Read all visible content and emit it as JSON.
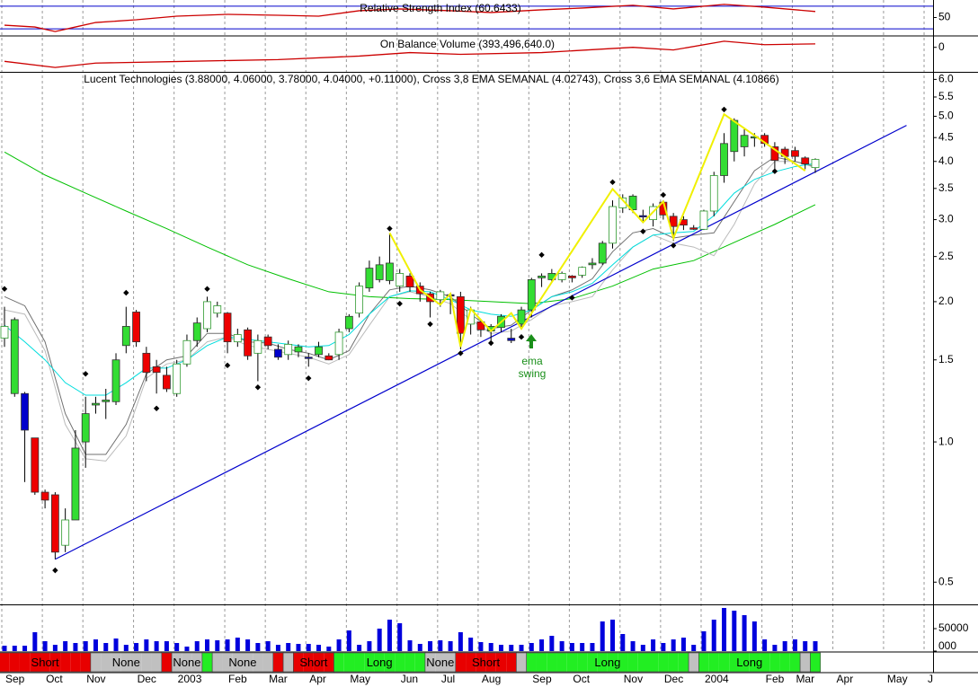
{
  "chart_data": [
    {
      "type": "line",
      "title": "Relative Strength Index (60.6433)",
      "color": "#cc0000",
      "level_color": "#0000cc",
      "ylim": [
        19,
        81
      ],
      "yticks": [
        50
      ],
      "levels": [
        30,
        70
      ],
      "x": [
        0,
        3,
        5,
        7,
        9,
        13,
        17,
        22,
        27,
        31,
        35,
        39,
        44,
        48,
        53,
        57,
        62,
        66,
        71,
        75,
        80
      ],
      "values": [
        36.4,
        33.2,
        25.2,
        33.2,
        41.2,
        46,
        52.4,
        55.6,
        54,
        52.4,
        62,
        65.2,
        62,
        58.8,
        63.6,
        66.8,
        71.6,
        65.2,
        73.2,
        68.4,
        60.6433
      ]
    },
    {
      "type": "line",
      "title": "On Balance Volume (393,496,640.0)",
      "color": "#cc0000",
      "ylim": [
        -2800000000,
        1200000000
      ],
      "yticks": [
        0
      ],
      "x": [
        0,
        5,
        9,
        18,
        27,
        35,
        40,
        45,
        53,
        62,
        66,
        71,
        75,
        80
      ],
      "values": [
        -1600000000,
        -2300000000,
        -1800000000,
        -1600000000,
        -1400000000,
        -1000000000,
        -600000000,
        -800000000,
        -600000000,
        0,
        -300000000,
        700000000,
        300000000,
        393496640
      ]
    },
    {
      "type": "candlestick",
      "title": "Lucent Technologies (3.88000, 4.06000, 3.78000, 4.04000, +0.11000), Cross 3,8 EMA SEMANAL (4.02743), Cross 3,6 EMA SEMANAL (4.10866)",
      "log_scale": true,
      "ylim": [
        0.45,
        6.2
      ],
      "yticks": [
        {
          "value": 6,
          "label": "6.0"
        },
        5.5,
        {
          "value": 5,
          "label": "5.0"
        },
        4.5,
        {
          "value": 4,
          "label": "4.0"
        },
        3.5,
        {
          "value": 3,
          "label": "3.0"
        },
        2.5,
        {
          "value": 2,
          "label": "2.0"
        },
        1.5,
        {
          "value": 1,
          "label": "1.0"
        },
        0.5
      ],
      "hollow_outline": "#2f9a2f",
      "open": [
        1.67,
        1.83,
        1.27,
        1.02,
        0.78,
        0.77,
        0.6,
        0.68,
        1.0,
        1.2,
        1.22,
        1.22,
        1.61,
        1.9,
        1.55,
        1.45,
        1.39,
        1.27,
        1.47,
        1.65,
        1.75,
        1.89,
        1.89,
        1.64,
        1.74,
        1.55,
        1.68,
        1.58,
        1.54,
        1.56,
        1.52,
        1.54,
        1.53,
        1.54,
        1.75,
        1.89,
        2.14,
        2.23,
        2.22,
        2.16,
        2.27,
        2.16,
        2.08,
        2.02,
        2.06,
        2.05,
        1.79,
        1.81,
        1.73,
        1.76,
        1.65,
        1.79,
        1.92,
        2.25,
        2.23,
        2.23,
        2.27,
        2.28,
        2.4,
        2.42,
        2.67,
        3.18,
        3.15,
        3.06,
        3.0,
        3.27,
        3.05,
        3.0,
        2.88,
        2.86,
        3.13,
        3.73,
        4.2,
        4.3,
        4.5,
        4.55,
        4.3,
        4.25,
        4.22,
        4.07,
        3.88
      ],
      "high": [
        1.95,
        1.85,
        1.28,
        1.02,
        0.79,
        0.78,
        0.72,
        1.06,
        1.25,
        1.25,
        1.3,
        1.55,
        1.95,
        1.92,
        1.6,
        1.5,
        1.45,
        1.5,
        1.7,
        1.85,
        2.05,
        2.0,
        1.9,
        1.75,
        1.76,
        1.7,
        1.7,
        1.62,
        1.65,
        1.62,
        1.55,
        1.64,
        1.55,
        1.75,
        1.88,
        2.2,
        2.45,
        2.5,
        2.8,
        2.35,
        2.3,
        2.2,
        2.1,
        2.12,
        2.08,
        2.1,
        1.95,
        1.83,
        1.79,
        1.88,
        1.75,
        1.95,
        2.25,
        2.3,
        2.35,
        2.32,
        2.28,
        2.38,
        2.48,
        2.7,
        3.3,
        3.4,
        3.4,
        3.15,
        3.25,
        3.3,
        3.1,
        3.05,
        2.92,
        3.15,
        3.8,
        4.6,
        4.95,
        4.7,
        4.6,
        4.6,
        4.4,
        4.3,
        4.3,
        4.1,
        4.06
      ],
      "low": [
        1.6,
        1.25,
        0.82,
        0.77,
        0.72,
        0.56,
        0.58,
        0.68,
        0.88,
        1.15,
        1.12,
        1.2,
        1.55,
        1.6,
        1.35,
        1.27,
        1.28,
        1.25,
        1.45,
        1.6,
        1.72,
        1.85,
        1.55,
        1.6,
        1.5,
        1.35,
        1.58,
        1.5,
        1.5,
        1.52,
        1.45,
        1.52,
        1.5,
        1.5,
        1.72,
        1.85,
        2.1,
        2.2,
        2.18,
        2.1,
        2.1,
        2.0,
        1.85,
        1.95,
        1.88,
        1.58,
        1.7,
        1.68,
        1.65,
        1.72,
        1.63,
        1.75,
        1.85,
        2.15,
        2.2,
        2.2,
        2.2,
        2.25,
        2.35,
        2.4,
        2.6,
        3.1,
        3.1,
        2.95,
        2.9,
        3.0,
        2.7,
        2.85,
        2.85,
        2.85,
        3.05,
        3.6,
        4.0,
        4.1,
        4.3,
        4.3,
        3.85,
        3.95,
        4.0,
        3.85,
        3.78
      ],
      "close": [
        1.77,
        1.27,
        1.06,
        0.78,
        0.75,
        0.58,
        0.68,
        0.97,
        1.15,
        1.21,
        1.23,
        1.5,
        1.77,
        1.64,
        1.41,
        1.41,
        1.3,
        1.47,
        1.65,
        1.8,
        2.0,
        1.96,
        1.64,
        1.7,
        1.53,
        1.65,
        1.61,
        1.52,
        1.62,
        1.6,
        1.52,
        1.6,
        1.5,
        1.72,
        1.86,
        2.16,
        2.36,
        2.4,
        2.42,
        2.3,
        2.15,
        2.08,
        2.0,
        2.1,
        2.07,
        1.71,
        1.92,
        1.74,
        1.77,
        1.86,
        1.67,
        1.92,
        2.23,
        2.27,
        2.3,
        2.3,
        2.25,
        2.37,
        2.42,
        2.67,
        3.2,
        3.34,
        3.37,
        3.04,
        3.2,
        3.07,
        2.9,
        2.92,
        2.86,
        3.13,
        3.73,
        4.37,
        4.9,
        4.55,
        4.52,
        4.37,
        4.02,
        4.1,
        4.1,
        3.95,
        4.04
      ],
      "fills": [
        "#ffffff",
        "#33dd33",
        "#0000cc",
        "#ee0000",
        "#ee0000",
        "#ee0000",
        "#ffffff",
        "#33dd33",
        "#33dd33",
        "#33dd33",
        "#33dd33",
        "#33dd33",
        "#33dd33",
        "#ee0000",
        "#ee0000",
        "#ee0000",
        "#ee0000",
        "#ffffff",
        "#ffffff",
        "#33dd33",
        "#ffffff",
        "#ffffff",
        "#ee0000",
        "#ffffff",
        "#ee0000",
        "#ffffff",
        "#ee0000",
        "#0000cc",
        "#ffffff",
        "#33dd33",
        "#0000cc",
        "#33dd33",
        "#ee0000",
        "#ffffff",
        "#33dd33",
        "#ffffff",
        "#33dd33",
        "#33dd33",
        "#33dd33",
        "#ffffff",
        "#ee0000",
        "#ee0000",
        "#ee0000",
        "#ffffff",
        "#0000cc",
        "#ee0000",
        "#ffffff",
        "#ee0000",
        "#33dd33",
        "#33dd33",
        "#0000cc",
        "#33dd33",
        "#33dd33",
        "#33dd33",
        "#33dd33",
        "#ffffff",
        "#ee0000",
        "#ffffff",
        "#33dd33",
        "#33dd33",
        "#ffffff",
        "#ffffff",
        "#33dd33",
        "#0000cc",
        "#ffffff",
        "#ee0000",
        "#ee0000",
        "#ee0000",
        "#ee0000",
        "#ffffff",
        "#ffffff",
        "#33dd33",
        "#33dd33",
        "#33dd33",
        "#33dd33",
        "#ee0000",
        "#ee0000",
        "#ee0000",
        "#ee0000",
        "#ee0000",
        "#ffffff"
      ],
      "lines": [
        {
          "color": "#00c000",
          "x": [
            0,
            4,
            8,
            12,
            16,
            20,
            24,
            28,
            32,
            36,
            40,
            44,
            48,
            52,
            56,
            60,
            64,
            68,
            72,
            76,
            80
          ],
          "values": [
            4.19,
            3.74,
            3.42,
            3.13,
            2.87,
            2.62,
            2.4,
            2.24,
            2.1,
            2.05,
            2.03,
            2.02,
            2.0,
            1.98,
            2.03,
            2.16,
            2.35,
            2.45,
            2.68,
            2.93,
            3.23
          ]
        },
        {
          "color": "#bbbbbb",
          "x": [
            0,
            2,
            4,
            6,
            8,
            10,
            12,
            14,
            16,
            18,
            20,
            22,
            24,
            26,
            28,
            30,
            32,
            34,
            36,
            38,
            40,
            42,
            44,
            46,
            48,
            50,
            52,
            54,
            56,
            58,
            60,
            62,
            64,
            66,
            68,
            70,
            72,
            74,
            76,
            78,
            80
          ],
          "values": [
            1.92,
            1.88,
            1.57,
            1.09,
            0.92,
            0.91,
            1.03,
            1.37,
            1.47,
            1.5,
            1.64,
            1.68,
            1.61,
            1.58,
            1.55,
            1.52,
            1.47,
            1.54,
            1.78,
            2.05,
            2.1,
            2.05,
            1.98,
            1.83,
            1.71,
            1.73,
            1.83,
            1.96,
            2.0,
            2.05,
            2.34,
            2.62,
            2.78,
            2.67,
            2.62,
            2.51,
            2.93,
            3.58,
            4.0,
            4.0,
            3.88
          ]
        },
        {
          "color": "#707070",
          "x": [
            0,
            2,
            4,
            6,
            8,
            10,
            12,
            14,
            16,
            18,
            20,
            22,
            24,
            26,
            28,
            30,
            32,
            34,
            36,
            38,
            40,
            42,
            44,
            46,
            48,
            50,
            52,
            54,
            56,
            58,
            60,
            62,
            64,
            66,
            68,
            70,
            72,
            74,
            76,
            78,
            80
          ],
          "values": [
            2.05,
            1.96,
            1.64,
            1.15,
            0.94,
            0.94,
            1.09,
            1.4,
            1.5,
            1.53,
            1.71,
            1.71,
            1.64,
            1.63,
            1.58,
            1.55,
            1.5,
            1.57,
            1.88,
            2.12,
            2.16,
            2.12,
            2.05,
            1.88,
            1.75,
            1.78,
            1.92,
            2.05,
            2.12,
            2.24,
            2.56,
            2.81,
            2.87,
            2.74,
            2.78,
            2.81,
            3.28,
            3.82,
            4.09,
            4.0,
            3.9
          ]
        },
        {
          "color": "#00dddd",
          "x": [
            0,
            2,
            4,
            6,
            8,
            10,
            12,
            14,
            16,
            18,
            20,
            22,
            24,
            26,
            28,
            30,
            32,
            34,
            36,
            38,
            40,
            42,
            44,
            46,
            48,
            50,
            52,
            54,
            56,
            58,
            60,
            62,
            64,
            66,
            68,
            70,
            72,
            74,
            76,
            78,
            80
          ],
          "values": [
            1.78,
            1.64,
            1.5,
            1.34,
            1.26,
            1.26,
            1.34,
            1.44,
            1.44,
            1.5,
            1.61,
            1.68,
            1.66,
            1.64,
            1.62,
            1.6,
            1.61,
            1.7,
            1.88,
            2.05,
            2.11,
            2.1,
            2.02,
            1.92,
            1.88,
            1.86,
            1.92,
            2.05,
            2.1,
            2.19,
            2.4,
            2.62,
            2.78,
            2.81,
            2.83,
            3.06,
            3.42,
            3.66,
            3.8,
            3.9,
            3.96
          ]
        }
      ],
      "trendline": {
        "color": "#0000cc",
        "x": [
          5,
          89
        ],
        "values": [
          0.56,
          4.78
        ]
      },
      "zigzag": {
        "color": "#f0f000",
        "x": [
          38,
          41,
          43,
          44,
          45,
          46,
          48,
          50,
          51,
          60,
          63,
          65,
          66,
          71,
          79
        ],
        "values": [
          2.81,
          2.12,
          1.97,
          2.08,
          1.6,
          1.93,
          1.73,
          1.89,
          1.75,
          3.49,
          2.96,
          3.28,
          2.74,
          5.05,
          3.82
        ]
      },
      "pivots": {
        "x": [
          0,
          5,
          8,
          12,
          15,
          20,
          22,
          25,
          30,
          38,
          39,
          42,
          45,
          48,
          51,
          53,
          56,
          60,
          63,
          65,
          66,
          71,
          76
        ],
        "values": [
          2.13,
          0.53,
          1.4,
          2.09,
          1.18,
          2.13,
          1.46,
          1.31,
          1.37,
          2.87,
          1.98,
          1.79,
          1.55,
          1.63,
          1.68,
          2.52,
          2.04,
          3.61,
          2.83,
          3.39,
          2.64,
          5.17,
          3.81
        ]
      },
      "annotation": {
        "lines": [
          "ema",
          "swing"
        ],
        "color": "#1a8f1a"
      }
    },
    {
      "type": "bar",
      "color": "#0000dd",
      "ylim": [
        0,
        100000
      ],
      "yticks": [
        50000,
        {
          "value": 0,
          "label": "000"
        }
      ],
      "values": [
        12000,
        12000,
        12000,
        42000,
        22000,
        14000,
        22000,
        18000,
        22000,
        26000,
        18000,
        28000,
        14000,
        18000,
        26000,
        22000,
        22000,
        18000,
        10000,
        22000,
        26000,
        24000,
        26000,
        30000,
        26000,
        18000,
        22000,
        14000,
        18000,
        16000,
        16000,
        14000,
        10000,
        26000,
        46000,
        14000,
        22000,
        50000,
        70000,
        62000,
        24000,
        16000,
        22000,
        24000,
        22000,
        42000,
        30000,
        20000,
        18000,
        14000,
        14000,
        14000,
        18000,
        26000,
        34000,
        22000,
        18000,
        18000,
        18000,
        66000,
        70000,
        38000,
        22000,
        14000,
        26000,
        18000,
        26000,
        30000,
        14000,
        44000,
        70000,
        96000,
        90000,
        80000,
        66000,
        26000,
        14000,
        22000,
        26000,
        22000,
        22000
      ]
    },
    {
      "type": "timeline",
      "colors": {
        "Short": "#e80000",
        "None": "#c0c0c0",
        "Long": "#22ee22"
      },
      "categories": [
        "Sep",
        null,
        null,
        null,
        "Oct",
        null,
        null,
        null,
        "Nov",
        null,
        null,
        null,
        null,
        "Dec",
        null,
        null,
        null,
        "2003",
        null,
        null,
        null,
        null,
        "Feb",
        null,
        null,
        null,
        "Mar",
        null,
        null,
        null,
        "Apr",
        null,
        null,
        null,
        "May",
        null,
        null,
        null,
        null,
        "Jun",
        null,
        null,
        null,
        "Jul",
        null,
        null,
        null,
        "Aug",
        null,
        null,
        null,
        null,
        "Sep",
        null,
        null,
        null,
        "Oct",
        null,
        null,
        null,
        null,
        "Nov",
        null,
        null,
        null,
        "Dec",
        null,
        null,
        null,
        "2004",
        null,
        null,
        null,
        null,
        null,
        "Feb",
        null,
        null,
        "Mar",
        null,
        null,
        null,
        "Apr",
        null,
        null,
        null,
        null,
        "May",
        null,
        null,
        null,
        "J",
        null
      ],
      "states": [
        "Short",
        "Short",
        "Short",
        "Short",
        "Short",
        "Short",
        "Short",
        "Short",
        "Short",
        "None",
        "None",
        "None",
        "None",
        "None",
        "None",
        "None",
        "Short",
        "None",
        "None",
        "None",
        "Long",
        "None",
        "None",
        "None",
        "None",
        "None",
        "None",
        "Short",
        "None",
        "Short",
        "Short",
        "Short",
        "Short",
        "Long",
        "Long",
        "Long",
        "Long",
        "Long",
        "Long",
        "Long",
        "Long",
        "Long",
        "None",
        "None",
        "None",
        "Short",
        "Short",
        "Short",
        "Short",
        "Short",
        "Short",
        "None",
        "Long",
        "Long",
        "Long",
        "Long",
        "Long",
        "Long",
        "Long",
        "Long",
        "Long",
        "Long",
        "Long",
        "Long",
        "Long",
        "Long",
        "Long",
        "Long",
        "None",
        "Long",
        "Long",
        "Long",
        "Long",
        "Long",
        "Long",
        "Long",
        "Long",
        "Long",
        "Long",
        "None",
        "Long",
        null,
        null,
        null,
        null,
        null,
        null,
        null,
        null,
        null,
        null,
        null,
        null
      ]
    }
  ]
}
